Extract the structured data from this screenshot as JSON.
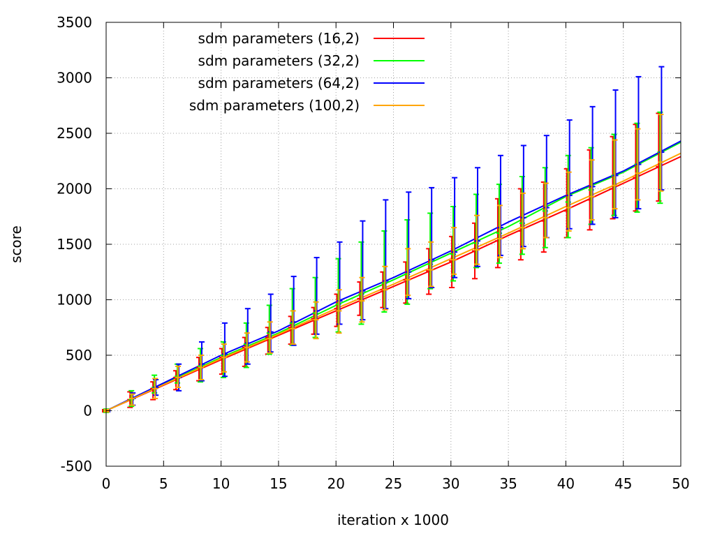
{
  "chart_data": {
    "type": "line",
    "title": "",
    "xlabel": "iteration x 1000",
    "ylabel": "score",
    "xlim": [
      0,
      50
    ],
    "ylim": [
      -500,
      3500
    ],
    "xticks": [
      0,
      5,
      10,
      15,
      20,
      25,
      30,
      35,
      40,
      45,
      50
    ],
    "yticks": [
      -500,
      0,
      500,
      1000,
      1500,
      2000,
      2500,
      3000,
      3500
    ],
    "grid": true,
    "legend_position": "top-left",
    "errorbar_x": [
      0,
      2.2,
      4.2,
      6.2,
      8.2,
      10.2,
      12.2,
      14.2,
      16.2,
      18.2,
      20.2,
      22.2,
      24.2,
      26.2,
      28.2,
      30.2,
      32.2,
      34.2,
      36.2,
      38.2,
      40.2,
      42.2,
      44.2,
      46.2,
      48.2
    ],
    "series": [
      {
        "name": "sdm parameters (16,2)",
        "color": "#ff0000",
        "x": [
          0,
          5,
          10,
          15,
          20,
          25,
          30,
          35,
          40,
          45,
          50
        ],
        "y": [
          0,
          230,
          460,
          680,
          900,
          1120,
          1340,
          1580,
          1810,
          2050,
          2290
        ],
        "errorbar_mean": [
          0,
          100,
          200,
          300,
          390,
          480,
          570,
          660,
          750,
          830,
          920,
          1010,
          1090,
          1180,
          1260,
          1350,
          1440,
          1530,
          1620,
          1710,
          1800,
          1900,
          2000,
          2100,
          2200
        ],
        "errorbar_low": [
          -10,
          30,
          100,
          190,
          270,
          330,
          400,
          510,
          600,
          690,
          760,
          860,
          930,
          970,
          1050,
          1110,
          1190,
          1290,
          1360,
          1430,
          1560,
          1630,
          1730,
          1800,
          1890
        ],
        "errorbar_high": [
          10,
          170,
          260,
          360,
          480,
          560,
          660,
          750,
          850,
          930,
          1050,
          1160,
          1250,
          1340,
          1460,
          1570,
          1690,
          1910,
          2000,
          2060,
          2180,
          2350,
          2470,
          2580,
          2680
        ]
      },
      {
        "name": "sdm parameters (32,2)",
        "color": "#00ff00",
        "x": [
          0,
          5,
          10,
          15,
          20,
          25,
          30,
          35,
          40,
          45,
          50
        ],
        "y": [
          0,
          240,
          480,
          700,
          950,
          1180,
          1420,
          1660,
          1930,
          2150,
          2420
        ],
        "errorbar_mean": [
          0,
          100,
          210,
          310,
          400,
          500,
          600,
          700,
          790,
          880,
          960,
          1050,
          1150,
          1230,
          1320,
          1410,
          1510,
          1600,
          1690,
          1800,
          1880,
          1990,
          2120,
          2220,
          2330
        ],
        "errorbar_low": [
          -15,
          40,
          160,
          250,
          260,
          300,
          390,
          510,
          590,
          660,
          710,
          780,
          890,
          960,
          1100,
          1170,
          1290,
          1330,
          1410,
          1470,
          1560,
          1680,
          1760,
          1790,
          1870
        ],
        "errorbar_high": [
          15,
          180,
          320,
          420,
          560,
          620,
          790,
          950,
          1100,
          1200,
          1370,
          1520,
          1620,
          1720,
          1780,
          1840,
          1950,
          2040,
          2110,
          2190,
          2300,
          2370,
          2490,
          2590,
          2690
        ]
      },
      {
        "name": "sdm parameters (64,2)",
        "color": "#0000ff",
        "x": [
          0,
          5,
          10,
          15,
          20,
          25,
          30,
          35,
          40,
          45,
          50
        ],
        "y": [
          0,
          250,
          500,
          720,
          980,
          1200,
          1440,
          1700,
          1940,
          2160,
          2430
        ],
        "errorbar_mean": [
          0,
          110,
          210,
          300,
          420,
          510,
          610,
          710,
          800,
          900,
          990,
          1080,
          1170,
          1250,
          1360,
          1430,
          1530,
          1650,
          1740,
          1830,
          1940,
          2020,
          2120,
          2220,
          2330
        ],
        "errorbar_low": [
          -10,
          50,
          140,
          180,
          270,
          310,
          420,
          530,
          590,
          690,
          780,
          820,
          920,
          1010,
          1110,
          1200,
          1300,
          1400,
          1480,
          1560,
          1640,
          1680,
          1740,
          1820,
          1990
        ],
        "errorbar_high": [
          10,
          160,
          280,
          420,
          620,
          790,
          920,
          1050,
          1210,
          1380,
          1520,
          1710,
          1900,
          1970,
          2010,
          2100,
          2190,
          2300,
          2390,
          2480,
          2620,
          2740,
          2890,
          3010,
          3100
        ]
      },
      {
        "name": "sdm parameters (100,2)",
        "color": "#ffa500",
        "x": [
          0,
          5,
          10,
          15,
          20,
          25,
          30,
          35,
          40,
          45,
          50
        ],
        "y": [
          0,
          235,
          470,
          690,
          920,
          1140,
          1370,
          1600,
          1840,
          2070,
          2320
        ],
        "errorbar_mean": [
          0,
          110,
          200,
          300,
          390,
          480,
          570,
          650,
          740,
          820,
          900,
          990,
          1090,
          1180,
          1270,
          1360,
          1450,
          1550,
          1650,
          1740,
          1830,
          1930,
          2030,
          2140,
          2240
        ],
        "errorbar_low": [
          -10,
          50,
          110,
          210,
          280,
          350,
          440,
          520,
          600,
          650,
          700,
          800,
          910,
          1040,
          1120,
          1230,
          1320,
          1380,
          1460,
          1560,
          1620,
          1720,
          1820,
          1900,
          1980
        ],
        "errorbar_high": [
          10,
          150,
          290,
          400,
          500,
          600,
          700,
          800,
          900,
          980,
          1090,
          1200,
          1300,
          1460,
          1520,
          1650,
          1760,
          1850,
          1960,
          2050,
          2150,
          2260,
          2440,
          2540,
          2670
        ]
      }
    ]
  }
}
